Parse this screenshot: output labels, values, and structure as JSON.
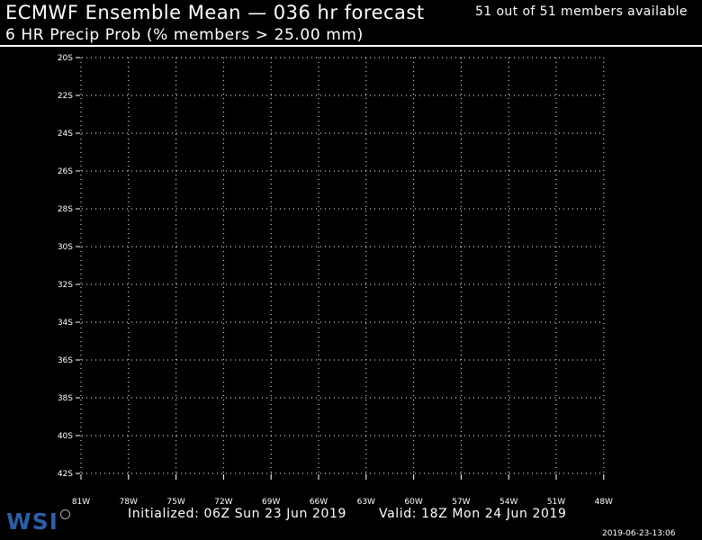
{
  "header": {
    "title": "ECMWF Ensemble Mean — 036 hr forecast",
    "members_available": "51 out of 51 members available",
    "subtitle": "6 HR Precip Prob (% members > 25.00 mm)"
  },
  "map": {
    "latitude_labels": [
      "20S",
      "22S",
      "24S",
      "26S",
      "28S",
      "30S",
      "32S",
      "34S",
      "36S",
      "38S",
      "40S",
      "42S"
    ],
    "longitude_labels": [
      "81W",
      "78W",
      "75W",
      "72W",
      "69W",
      "66W",
      "63W",
      "60W",
      "57W",
      "54W",
      "51W",
      "48W"
    ],
    "background_color": "#000000",
    "grid_color": "#ffffff",
    "grid_style": "dotted"
  },
  "footer": {
    "initialized": "Initialized: 06Z Sun 23 Jun 2019",
    "valid": "Valid: 18Z Mon 24 Jun 2019",
    "timestamp": "2019-06-23-13:06",
    "logo_text": "WSI"
  },
  "colors": {
    "logo": "#2b5fa8"
  }
}
